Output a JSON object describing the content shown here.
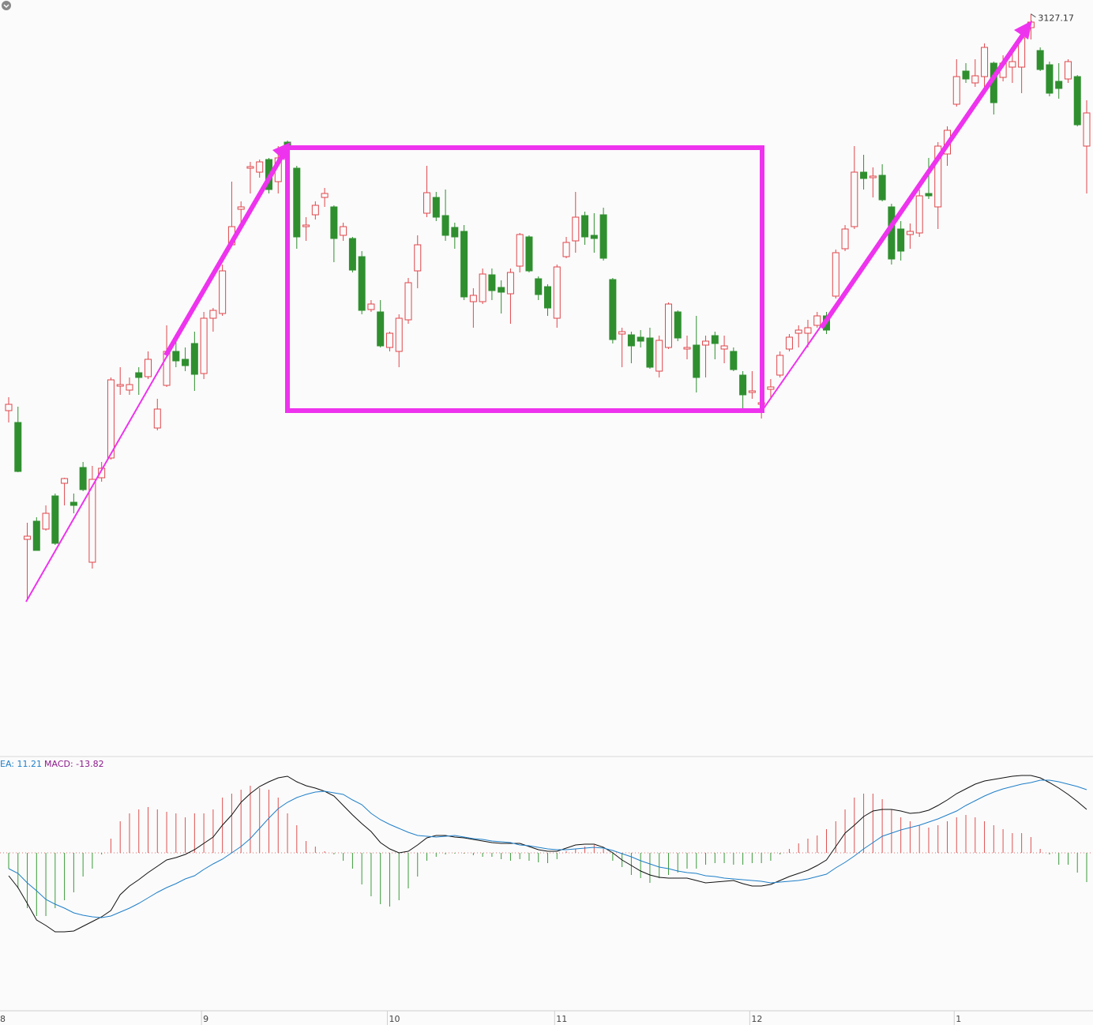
{
  "chart_data": [
    {
      "type": "candlestick",
      "open": [
        2876,
        2868.5,
        2794.5,
        2806,
        2801,
        2822,
        2830,
        2818,
        2840,
        2780,
        2833.5,
        2846,
        2891.5,
        2889,
        2900,
        2897.5,
        2865,
        2892,
        2913.5,
        2908.5,
        2918.5,
        2899.5,
        2934.5,
        2937.5,
        2981,
        3003.5,
        3029.5,
        3027,
        3035,
        3021,
        3046,
        3029.5,
        2992.5,
        3000,
        3011,
        3005,
        2987,
        2985,
        2973.5,
        2940,
        2938.5,
        2916,
        2913.5,
        2933.5,
        2964.5,
        3001,
        3011,
        2999.5,
        2992,
        2989.5,
        2945,
        2945,
        2962,
        2954,
        2950,
        2967.5,
        2986,
        2959.5,
        2954.5,
        2934.5,
        2973.5,
        2983.5,
        2999.5,
        2987,
        3000,
        2959,
        2924.5,
        2924,
        2922.5,
        2922,
        2901,
        2916,
        2938.5,
        2915,
        2917.5,
        2917.5,
        2923.5,
        2915,
        2913.5,
        2898.5,
        2887.5,
        2880,
        2889.5,
        2898.5,
        2915,
        2925,
        2925,
        2930,
        2936,
        2948.5,
        2978.5,
        2992.5,
        3027,
        3023.5,
        3025,
        3005,
        2991,
        2987.5,
        2988.5,
        3013.5,
        3005,
        3038.5,
        3070,
        3091,
        3083.5,
        3087.5,
        3096,
        3087,
        3093.5,
        3093.5,
        3118.5,
        3104,
        3095,
        3084.5,
        3086,
        3087.5,
        3043.5
      ],
      "high": [
        2884.5,
        2878.5,
        2805,
        2808.5,
        2816,
        2823.5,
        2833.5,
        2823.5,
        2843.5,
        2841,
        2843.5,
        2897,
        2903.5,
        2897,
        2903.5,
        2913.5,
        2883.5,
        2930,
        2921,
        2916,
        2926,
        2938.5,
        2941,
        2968.5,
        3021,
        3008.5,
        3033.5,
        3035,
        3036,
        3043.5,
        3047,
        3031,
        2998.5,
        3008.5,
        3017,
        3006,
        2995,
        2986,
        2977,
        2946,
        2946,
        2926,
        2937,
        2960,
        2987,
        3031,
        3014.5,
        3016,
        2995,
        2993.5,
        2953.5,
        2966,
        2966,
        2958.5,
        2966,
        2988.5,
        2987,
        2961,
        2956,
        2968.5,
        2986,
        3014.5,
        3002,
        3001,
        3004.5,
        2960,
        2928.5,
        2926,
        2927,
        2928.5,
        2923.5,
        2944.5,
        2939.5,
        2923.5,
        2936,
        2923.5,
        2926,
        2923.5,
        2916,
        2901,
        2901,
        2886,
        2896,
        2913.5,
        2924.5,
        2930,
        2933.5,
        2938.5,
        2938.5,
        2978,
        2993.5,
        3043.5,
        3038,
        3030,
        3032,
        3007,
        2996,
        2994.5,
        3016,
        3036,
        3046,
        3056,
        3098.5,
        3096,
        3098.5,
        3108.5,
        3097,
        3101,
        3106,
        3116,
        3127.17,
        3106,
        3097,
        3096,
        3098.5,
        3088.5,
        3072.5
      ],
      "low": [
        2868.5,
        2837,
        2756,
        2787.5,
        2800,
        2791,
        2816,
        2811,
        2825,
        2776,
        2831,
        2845,
        2886,
        2886,
        2886,
        2896,
        2863.5,
        2891,
        2903.5,
        2901,
        2888.5,
        2896,
        2926,
        2936,
        2980,
        2993.5,
        3013.5,
        3023.5,
        3013.5,
        3013.5,
        3040,
        2978.5,
        2983.5,
        2997,
        3005,
        2970,
        2983.5,
        2963.5,
        2937,
        2938.5,
        2916,
        2913.5,
        2903.5,
        2931,
        2953.5,
        2998.5,
        2996,
        2983.5,
        2978.5,
        2946,
        2928.5,
        2943.5,
        2946,
        2937.5,
        2931,
        2963.5,
        2963.5,
        2946,
        2936,
        2928.5,
        2972.5,
        2976,
        2981,
        2976,
        2971,
        2918.5,
        2903.5,
        2906,
        2916,
        2902.5,
        2897,
        2915,
        2920,
        2908.5,
        2887.5,
        2897,
        2908.5,
        2906,
        2901,
        2875,
        2883.5,
        2871,
        2883.5,
        2897,
        2913.5,
        2916,
        2916,
        2928.5,
        2924.5,
        2947,
        2977,
        2991,
        3016,
        3011,
        3008.5,
        2968.5,
        2971,
        2978.5,
        2986,
        3010,
        2991,
        3031,
        3068.5,
        3083.5,
        3081,
        3078.5,
        3063.5,
        3084.5,
        3083.5,
        3077,
        3111,
        3091,
        3075,
        3073.5,
        3083.5,
        3056,
        3013.5
      ],
      "close": [
        2880,
        2837.5,
        2796.5,
        2787.5,
        2811,
        2792,
        2833,
        2816,
        2826,
        2832.5,
        2839.5,
        2895.5,
        2892.5,
        2892.5,
        2897,
        2908.5,
        2877,
        2913.5,
        2907.5,
        2904.5,
        2899,
        2934.5,
        2939.5,
        2964.5,
        2992.5,
        3005,
        3030.5,
        3033.5,
        3016,
        3036,
        3042,
        2986,
        2993.5,
        3006,
        3013.5,
        2985,
        2992.5,
        2965,
        2939.5,
        2943.5,
        2917,
        2925,
        2934.5,
        2957,
        2981,
        3014,
        2998.5,
        2987,
        2986,
        2948,
        2949,
        2962.5,
        2952,
        2951,
        2963.5,
        2987.5,
        2964.5,
        2949.5,
        2941,
        2967,
        2982.5,
        2998.5,
        2986,
        2985,
        2972.5,
        2921,
        2926,
        2917,
        2920,
        2903.5,
        2920.5,
        2943.5,
        2922,
        2916,
        2897,
        2920,
        2918.5,
        2917,
        2902,
        2886,
        2888.5,
        2881,
        2891,
        2911,
        2922.5,
        2927,
        2928.5,
        2936,
        2927,
        2976,
        2991,
        3027,
        3023,
        3024.5,
        3009.5,
        2972,
        2977,
        2989.5,
        3012,
        3012,
        3043.5,
        3053.5,
        3087.5,
        3086,
        3088,
        3106,
        3071,
        3096,
        3097,
        3112,
        3122,
        3092,
        3077,
        3080,
        3097,
        3057,
        3064.5
      ],
      "colors": {
        "up": "#e0464b",
        "down": "#2f8f2f"
      },
      "ylim": [
        2658.5,
        3136
      ],
      "xticks": [
        {
          "value": -1,
          "label": "8"
        },
        {
          "value": 21,
          "label": "9"
        },
        {
          "value": 41,
          "label": "10"
        },
        {
          "value": 59,
          "label": "11"
        },
        {
          "value": 80,
          "label": "12"
        },
        {
          "value": 102,
          "label": "1"
        }
      ]
    },
    {
      "type": "macd",
      "legend": [
        {
          "text": "EA: 11.21",
          "color": "#1f7fc8"
        },
        {
          "text": "MACD: -13.82",
          "color": "#8b1a8b"
        }
      ],
      "series": [
        {
          "color": "#111111",
          "values": [
            -5.8,
            -8.8,
            -12.8,
            -17,
            -18.4,
            -20,
            -20,
            -19.8,
            -18.6,
            -17.4,
            -16.2,
            -14.6,
            -10.6,
            -8.4,
            -6.8,
            -5,
            -3.4,
            -1.8,
            -1.2,
            -0.4,
            0.8,
            2.4,
            4,
            7,
            9.6,
            12.8,
            15,
            16.8,
            18,
            19,
            19.4,
            18,
            17,
            16.4,
            15.6,
            14.4,
            12,
            9.6,
            7.4,
            5.4,
            2.6,
            1,
            0,
            0.4,
            2,
            3.8,
            4.4,
            4.4,
            4,
            3.8,
            3.4,
            3,
            2.6,
            2.4,
            2.4,
            2.4,
            1.6,
            0.8,
            0.4,
            0.4,
            1.2,
            2,
            2.2,
            2.2,
            1.4,
            0,
            -1.8,
            -3.2,
            -4.6,
            -5.6,
            -6.2,
            -6.4,
            -6.4,
            -6.4,
            -7,
            -7.6,
            -7.4,
            -7.2,
            -7,
            -7.8,
            -8.4,
            -8.4,
            -8,
            -7,
            -6,
            -5.2,
            -4.4,
            -3.2,
            -1.8,
            1.6,
            5,
            7,
            9.2,
            10.6,
            11,
            11,
            10.6,
            10,
            10.2,
            10.8,
            12,
            13.4,
            15,
            16.2,
            17.4,
            18.2,
            18.6,
            19,
            19.4,
            19.6,
            19.6,
            19,
            17.8,
            16.4,
            14.8,
            13,
            11
          ]
        },
        {
          "color": "#1f7fc8",
          "values": [
            -4,
            -5.2,
            -7.6,
            -9.6,
            -11.8,
            -13,
            -14,
            -15.2,
            -15.8,
            -16.2,
            -16.4,
            -16,
            -15,
            -14,
            -12.8,
            -11.4,
            -10,
            -8.8,
            -7.8,
            -6.6,
            -5.8,
            -4.2,
            -2.8,
            -1.6,
            0,
            1.6,
            3.6,
            6.2,
            8.8,
            11.2,
            12.8,
            14,
            14.8,
            15.4,
            15.6,
            15.2,
            14.8,
            13.4,
            12.2,
            10,
            8.4,
            7.2,
            6.2,
            5.2,
            4.4,
            4.2,
            4,
            4.2,
            4.4,
            4,
            3.6,
            3.4,
            3,
            2.8,
            2.6,
            2,
            1.8,
            1.4,
            1,
            0.8,
            0.8,
            1,
            1.2,
            1.4,
            1.2,
            0.6,
            -0.2,
            -1,
            -2,
            -2.8,
            -3.6,
            -4,
            -4.6,
            -5,
            -5.2,
            -5.8,
            -6,
            -6.4,
            -6.6,
            -6.8,
            -7,
            -7.2,
            -7.6,
            -7.4,
            -7.2,
            -7,
            -6.6,
            -6,
            -5.4,
            -3.8,
            -2.4,
            -0.8,
            1,
            2.6,
            4.2,
            5,
            5.8,
            6.4,
            7,
            7.8,
            8.6,
            9.6,
            10.6,
            12,
            13.2,
            14.4,
            15.4,
            16.2,
            16.8,
            17.4,
            17.8,
            18.4,
            18.4,
            18,
            17.4,
            16.8,
            16
          ]
        }
      ],
      "histogram": {
        "up_color": "#e05050",
        "down_color": "#3a9a3a",
        "values": [
          -4,
          -9,
          -14,
          -16,
          -16,
          -14,
          -12,
          -10,
          -6,
          -4,
          -0.4,
          3.6,
          8,
          10,
          11,
          11.6,
          11,
          10.4,
          10,
          9,
          10,
          10,
          11,
          14,
          15,
          16,
          17,
          16.4,
          16,
          14,
          10,
          7,
          3,
          1.6,
          0.4,
          -0.4,
          -2,
          -4,
          -8,
          -11,
          -13,
          -13.6,
          -12,
          -9,
          -6,
          -2,
          -1,
          -0.4,
          -0.2,
          -0.2,
          -0.6,
          -1,
          -1,
          -1.6,
          -2,
          -1.6,
          -2,
          -2.4,
          -2.6,
          -1.6,
          0.4,
          1,
          1.6,
          2,
          1,
          -2,
          -3.6,
          -5.6,
          -6.4,
          -7.6,
          -6.4,
          -5.6,
          -5,
          -4,
          -4,
          -3,
          -2.6,
          -2.6,
          -3,
          -3,
          -2.6,
          -2.6,
          -2,
          -0.4,
          1,
          2.4,
          3.6,
          4.4,
          6,
          8,
          11,
          14,
          15,
          15,
          13.6,
          11,
          9,
          8,
          7,
          6.4,
          7,
          8,
          9,
          9.6,
          9,
          8,
          7,
          6,
          5,
          5,
          4,
          1,
          -0.4,
          -3,
          -3,
          -5,
          -7.4
        ]
      },
      "ylim": [
        -40,
        24
      ]
    }
  ]
}
